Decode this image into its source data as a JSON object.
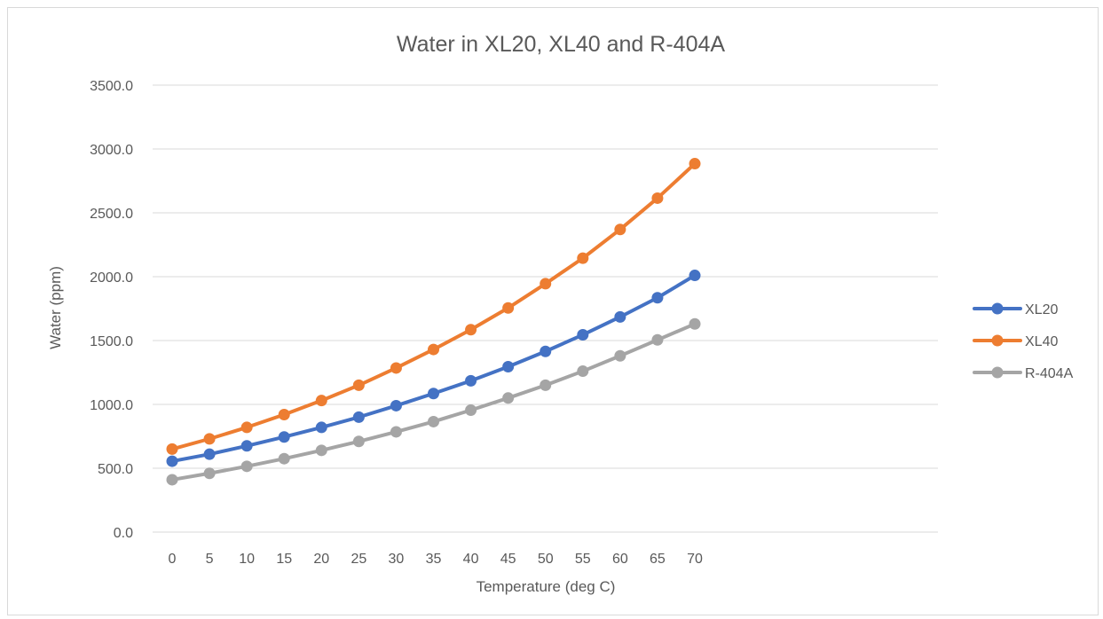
{
  "chart_data": {
    "type": "line",
    "title": "Water in XL20, XL40 and R-404A",
    "xlabel": "Temperature (deg C)",
    "ylabel": "Water (ppm)",
    "x": [
      0,
      5,
      10,
      15,
      20,
      25,
      30,
      35,
      40,
      45,
      50,
      55,
      60,
      65,
      70
    ],
    "x_tick_labels": [
      "0",
      "5",
      "10",
      "15",
      "20",
      "25",
      "30",
      "35",
      "40",
      "45",
      "50",
      "55",
      "60",
      "65",
      "70"
    ],
    "ylim": [
      0,
      3500
    ],
    "y_ticks": [
      0,
      500,
      1000,
      1500,
      2000,
      2500,
      3000,
      3500
    ],
    "y_tick_labels": [
      "0.0",
      "500.0",
      "1000.0",
      "1500.0",
      "2000.0",
      "2500.0",
      "3000.0",
      "3500.0"
    ],
    "grid": true,
    "legend_position": "right",
    "series": [
      {
        "name": "XL20",
        "color": "#4472c4",
        "values": [
          555,
          610,
          675,
          745,
          820,
          900,
          990,
          1085,
          1185,
          1295,
          1415,
          1545,
          1685,
          1835,
          2010
        ]
      },
      {
        "name": "XL40",
        "color": "#ed7d31",
        "values": [
          650,
          730,
          820,
          920,
          1030,
          1150,
          1285,
          1430,
          1585,
          1755,
          1945,
          2145,
          2370,
          2615,
          2885
        ]
      },
      {
        "name": "R-404A",
        "color": "#a5a5a5",
        "values": [
          410,
          460,
          515,
          575,
          640,
          710,
          785,
          865,
          955,
          1050,
          1150,
          1260,
          1380,
          1505,
          1630
        ]
      }
    ]
  }
}
